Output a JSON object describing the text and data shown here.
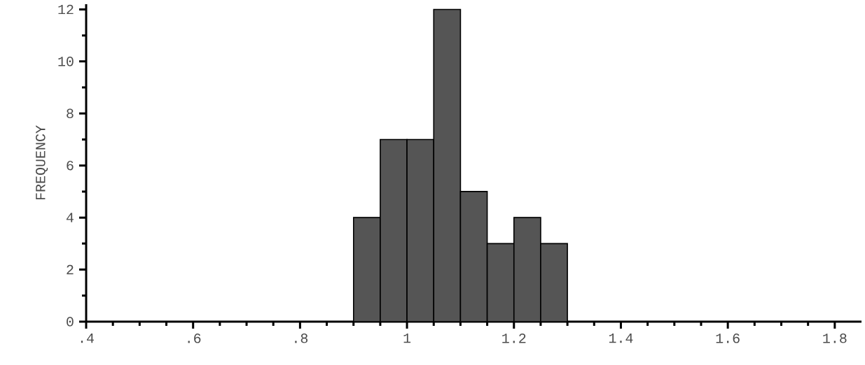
{
  "chart_data": {
    "type": "histogram",
    "ylabel": "FREQUENCY",
    "bins": [
      0.9,
      0.95,
      1.0,
      1.05,
      1.1,
      1.15,
      1.2,
      1.25,
      1.3
    ],
    "values": [
      4,
      7,
      7,
      12,
      5,
      3,
      4,
      3
    ],
    "color": "#555555",
    "xlim": [
      0.4,
      1.85
    ],
    "ylim": [
      0,
      12.2
    ],
    "xticks": [
      {
        "value": 0.4,
        "label": ".4"
      },
      {
        "value": 0.6,
        "label": ".6"
      },
      {
        "value": 0.8,
        "label": ".8"
      },
      1,
      1.2,
      1.4,
      1.6,
      1.8
    ],
    "yticks": [
      0,
      2,
      4,
      6,
      8,
      10,
      12
    ],
    "grid": false
  }
}
